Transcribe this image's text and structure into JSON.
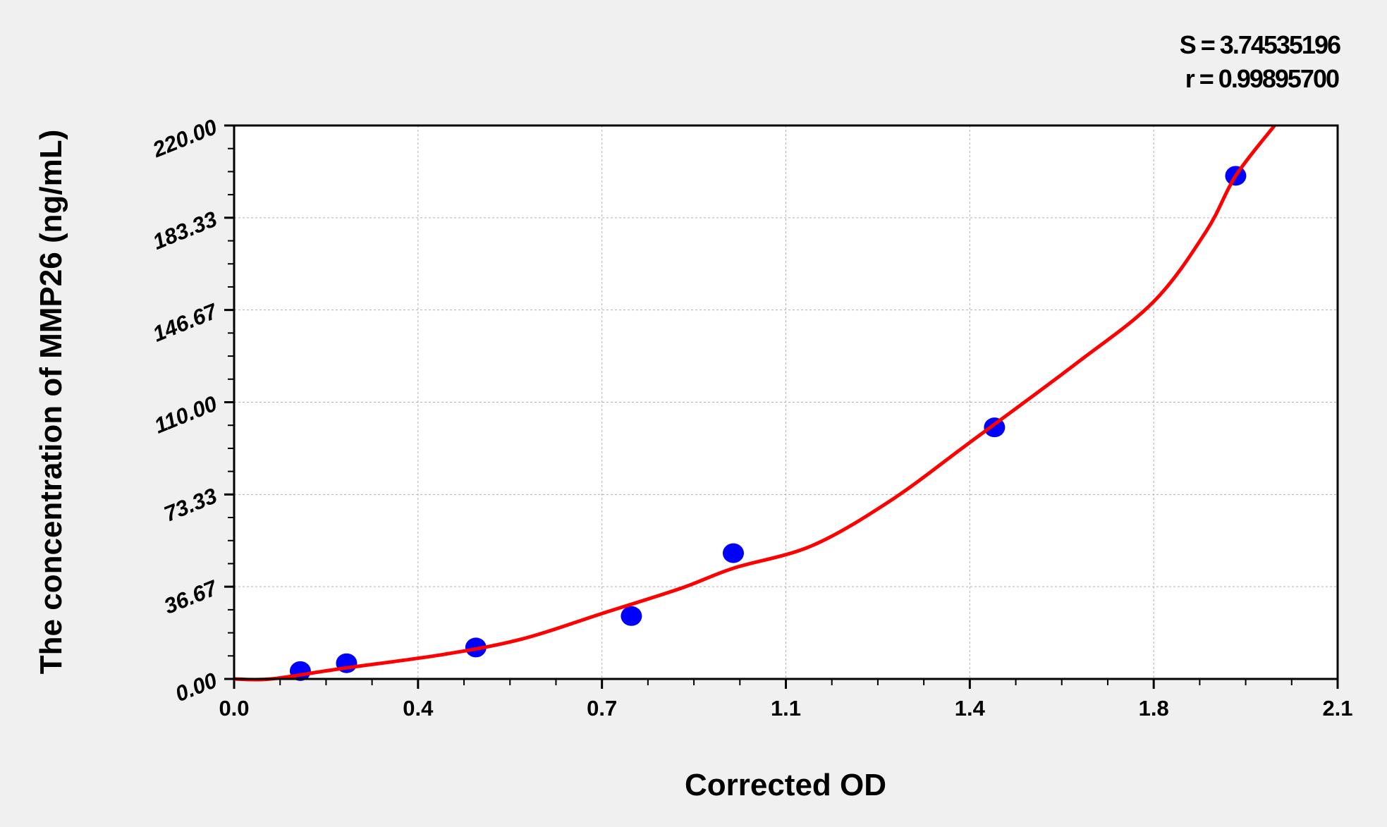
{
  "chart_data": {
    "type": "scatter",
    "title": "",
    "xlabel": "Corrected OD",
    "ylabel": "The concentration of MMP26 (ng/mL)",
    "xlim": [
      0,
      2.1
    ],
    "ylim": [
      0,
      220
    ],
    "x_ticks": [
      0,
      0.35,
      0.7,
      1.05,
      1.4,
      1.75,
      2.1
    ],
    "x_tick_labels": [
      "0.0",
      "0.4",
      "0.7",
      "1.1",
      "1.4",
      "1.8",
      "2.1"
    ],
    "y_ticks": [
      0,
      36.67,
      73.33,
      110,
      146.67,
      183.33,
      220
    ],
    "y_tick_labels": [
      "0.00",
      "36.67",
      "73.33",
      "110.00",
      "146.67",
      "183.33",
      "220.00"
    ],
    "grid": true,
    "annotations": [
      "S = 3.74535196",
      "r = 0.99895700"
    ],
    "points": {
      "x": [
        0.126,
        0.214,
        0.46,
        0.756,
        0.95,
        1.447,
        1.906
      ],
      "y": [
        3.12,
        6.25,
        12.5,
        25,
        50,
        100,
        200
      ],
      "color": "#0000ff"
    },
    "fit_curve": {
      "x": [
        0,
        0.07,
        0.2,
        0.4,
        0.55,
        0.7,
        0.85,
        0.95,
        1.1,
        1.25,
        1.4,
        1.6,
        1.75,
        1.85,
        1.906,
        1.98
      ],
      "y": [
        0,
        0,
        4,
        9.8,
        16,
        26,
        36,
        44,
        53,
        71,
        94,
        125,
        150,
        178,
        200,
        220
      ],
      "color": "#ff0000"
    }
  }
}
